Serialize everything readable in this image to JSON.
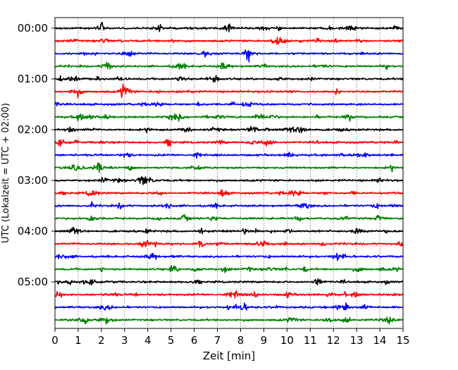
{
  "chart_data": {
    "type": "line",
    "title": "",
    "xlabel": "Zeit  [min]",
    "ylabel": "UTC (Lokalzeit = UTC + 02:00)",
    "xlim": [
      0,
      15
    ],
    "x_ticks": [
      "0",
      "1",
      "2",
      "3",
      "4",
      "5",
      "6",
      "7",
      "8",
      "9",
      "10",
      "11",
      "12",
      "13",
      "14",
      "15"
    ],
    "y_tick_labels": [
      "00:00",
      "01:00",
      "02:00",
      "03:00",
      "04:00",
      "05:00"
    ],
    "traces_per_hour": 4,
    "trace_minutes": 15,
    "grid": "vertical dotted at each minute",
    "colors": [
      "#000000",
      "#ff0000",
      "#0000ff",
      "#008000"
    ],
    "series": [
      {
        "start": "00:00",
        "color": "#000000"
      },
      {
        "start": "00:15",
        "color": "#ff0000"
      },
      {
        "start": "00:30",
        "color": "#0000ff"
      },
      {
        "start": "00:45",
        "color": "#008000"
      },
      {
        "start": "01:00",
        "color": "#000000"
      },
      {
        "start": "01:15",
        "color": "#ff0000"
      },
      {
        "start": "01:30",
        "color": "#0000ff"
      },
      {
        "start": "01:45",
        "color": "#008000"
      },
      {
        "start": "02:00",
        "color": "#000000"
      },
      {
        "start": "02:15",
        "color": "#ff0000"
      },
      {
        "start": "02:30",
        "color": "#0000ff"
      },
      {
        "start": "02:45",
        "color": "#008000"
      },
      {
        "start": "03:00",
        "color": "#000000"
      },
      {
        "start": "03:15",
        "color": "#ff0000"
      },
      {
        "start": "03:30",
        "color": "#0000ff"
      },
      {
        "start": "03:45",
        "color": "#008000"
      },
      {
        "start": "04:00",
        "color": "#000000"
      },
      {
        "start": "04:15",
        "color": "#ff0000"
      },
      {
        "start": "04:30",
        "color": "#0000ff"
      },
      {
        "start": "04:45",
        "color": "#008000"
      },
      {
        "start": "05:00",
        "color": "#000000"
      },
      {
        "start": "05:15",
        "color": "#ff0000"
      },
      {
        "start": "05:30",
        "color": "#0000ff"
      },
      {
        "start": "05:45",
        "color": "#008000"
      }
    ]
  }
}
